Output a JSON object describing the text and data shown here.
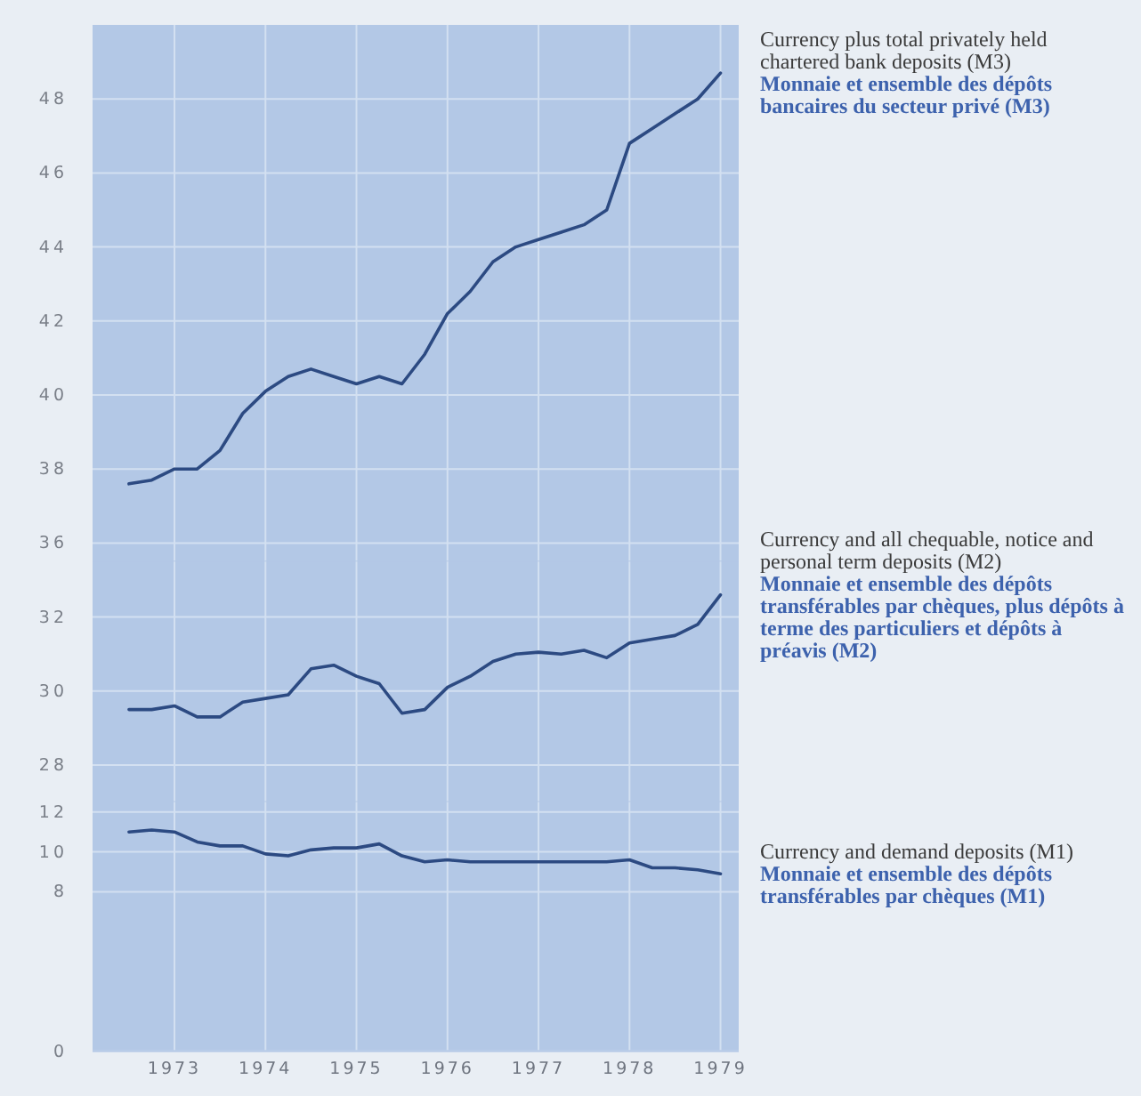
{
  "chart_data": [
    {
      "type": "line",
      "x": [
        1972.5,
        1972.75,
        1973,
        1973.25,
        1973.5,
        1973.75,
        1974,
        1974.25,
        1974.5,
        1974.75,
        1975,
        1975.25,
        1975.5,
        1975.75,
        1976,
        1976.25,
        1976.5,
        1976.75,
        1977,
        1977.25,
        1977.5,
        1977.75,
        1978,
        1978.25,
        1978.5,
        1978.75,
        1979
      ],
      "series": [
        {
          "name": "Currency plus total privately held chartered bank deposits (M3)",
          "color": "#2c4a82",
          "values": [
            37.6,
            37.7,
            38.0,
            38.0,
            38.5,
            39.5,
            40.1,
            40.5,
            40.7,
            40.5,
            40.3,
            40.5,
            40.3,
            41.1,
            42.2,
            42.8,
            43.6,
            44.0,
            44.2,
            44.4,
            44.6,
            45.0,
            46.8,
            47.2,
            47.6,
            48.0,
            48.7
          ]
        }
      ],
      "annotations": [
        "Monnaie et ensemble des dépôts bancaires du secteur privé (M3)"
      ],
      "xlim": [
        1972.1,
        1979.2
      ],
      "xticks": [
        1973,
        1974,
        1975,
        1976,
        1977,
        1978,
        1979
      ],
      "ylim": [
        35.5,
        50
      ],
      "yticks": [
        36,
        38,
        40,
        42,
        44,
        46,
        48
      ],
      "grid": true,
      "tick_labels": "y"
    },
    {
      "type": "line",
      "x": [
        1972.5,
        1972.75,
        1973,
        1973.25,
        1973.5,
        1973.75,
        1974,
        1974.25,
        1974.5,
        1974.75,
        1975,
        1975.25,
        1975.5,
        1975.75,
        1976,
        1976.25,
        1976.5,
        1976.75,
        1977,
        1977.25,
        1977.5,
        1977.75,
        1978,
        1978.25,
        1978.5,
        1978.75,
        1979
      ],
      "series": [
        {
          "name": "Currency and all chequable, notice and personal term deposits (M2)",
          "color": "#2c4a82",
          "values": [
            29.5,
            29.5,
            29.6,
            29.3,
            29.3,
            29.7,
            29.8,
            29.9,
            30.6,
            30.7,
            30.4,
            30.2,
            29.4,
            29.5,
            30.1,
            30.4,
            30.8,
            31.0,
            31.05,
            31.0,
            31.1,
            30.9,
            31.3,
            31.4,
            31.5,
            31.8,
            32.6
          ]
        }
      ],
      "annotations": [
        "Monnaie et ensemble des dépôts transférables par chèques, plus dépôts à terme des particuliers et dépôts à préavis (M2)"
      ],
      "xlim": [
        1972.1,
        1979.2
      ],
      "xticks": [
        1973,
        1974,
        1975,
        1976,
        1977,
        1978,
        1979
      ],
      "ylim": [
        27,
        33.5
      ],
      "yticks": [
        28,
        30,
        32
      ],
      "grid": true,
      "tick_labels": "y"
    },
    {
      "type": "line",
      "x": [
        1972.5,
        1972.75,
        1973,
        1973.25,
        1973.5,
        1973.75,
        1974,
        1974.25,
        1974.5,
        1974.75,
        1975,
        1975.25,
        1975.5,
        1975.75,
        1976,
        1976.25,
        1976.5,
        1976.75,
        1977,
        1977.25,
        1977.5,
        1977.75,
        1978,
        1978.25,
        1978.5,
        1978.75,
        1979
      ],
      "series": [
        {
          "name": "Currency and demand deposits (M1)",
          "color": "#2c4a82",
          "values": [
            11.0,
            11.1,
            11.0,
            10.5,
            10.3,
            10.3,
            9.9,
            9.8,
            10.1,
            10.2,
            10.2,
            10.4,
            9.8,
            9.5,
            9.6,
            9.5,
            9.5,
            9.5,
            9.5,
            9.5,
            9.5,
            9.5,
            9.6,
            9.2,
            9.2,
            9.1,
            8.9
          ]
        }
      ],
      "annotations": [
        "Monnaie et ensemble des dépôts transférables par chèques (M1)"
      ],
      "xlim": [
        1972.1,
        1979.2
      ],
      "xticks": [
        1973,
        1974,
        1975,
        1976,
        1977,
        1978,
        1979
      ],
      "ylim": [
        0,
        12.5
      ],
      "yticks": [
        0,
        8,
        10,
        12
      ],
      "grid": true
    }
  ]
}
